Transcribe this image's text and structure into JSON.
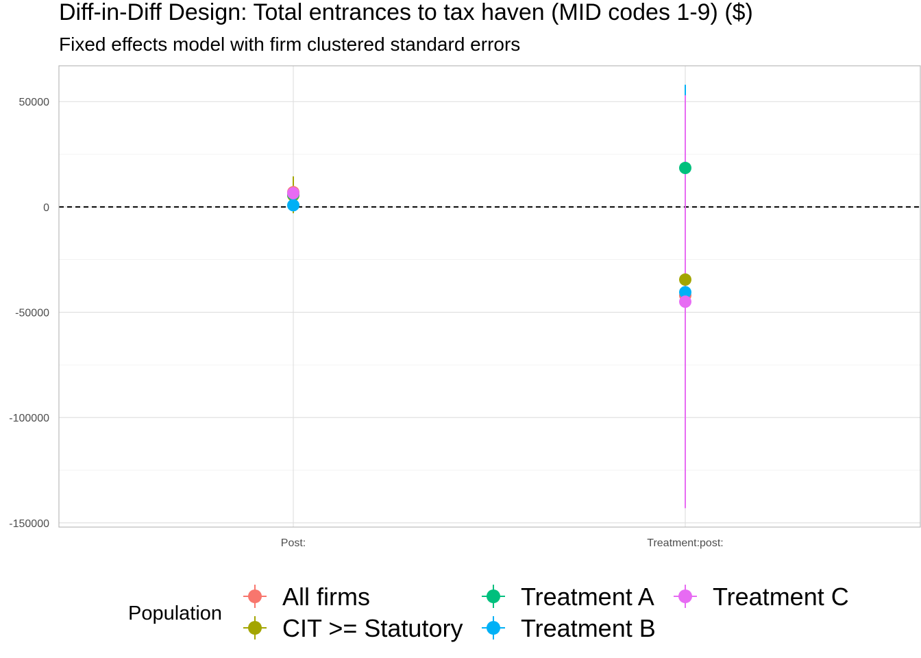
{
  "chart_data": {
    "type": "scatter",
    "title": "Diff-in-Diff Design: Total entrances to tax haven (MID codes 1-9)  ($)",
    "subtitle": "Fixed effects model with firm clustered standard errors",
    "xlabel": "",
    "ylabel": "",
    "categories": [
      "Post:",
      "Treatment:post:"
    ],
    "ylim": [
      -152000,
      67000
    ],
    "y_ticks": [
      50000,
      0,
      -50000,
      -100000,
      -150000
    ],
    "y_tick_labels": [
      "50000",
      "0",
      "-50000",
      "-100000",
      "-150000"
    ],
    "reference_line": {
      "y": 0,
      "style": "dashed"
    },
    "grid": true,
    "legend": {
      "title": "Population",
      "position": "bottom"
    },
    "series": [
      {
        "name": "All firms",
        "color": "#F8766D",
        "points": [
          {
            "x": "Post:",
            "y": 7000,
            "lo": 3000,
            "hi": 11000
          },
          {
            "x": "Treatment:post:",
            "y": -42000,
            "lo": -115000,
            "hi": 31000
          }
        ]
      },
      {
        "name": "CIT >= Statutory",
        "color": "#A3A500",
        "points": [
          {
            "x": "Post:",
            "y": 5500,
            "lo": -3000,
            "hi": 14500
          },
          {
            "x": "Treatment:post:",
            "y": -34500,
            "lo": -116000,
            "hi": 47000
          }
        ]
      },
      {
        "name": "Treatment A",
        "color": "#00BF7D",
        "points": [
          {
            "x": "Post:",
            "y": 6000,
            "lo": 2000,
            "hi": 10000
          },
          {
            "x": "Treatment:post:",
            "y": 18500,
            "lo": 16000,
            "hi": 21000
          }
        ]
      },
      {
        "name": "Treatment B",
        "color": "#00B0F6",
        "points": [
          {
            "x": "Post:",
            "y": 800,
            "lo": -1000,
            "hi": 2600
          },
          {
            "x": "Treatment:post:",
            "y": -40500,
            "lo": -138000,
            "hi": 58000
          }
        ]
      },
      {
        "name": "Treatment C",
        "color": "#E76BF3",
        "points": [
          {
            "x": "Post:",
            "y": 6500,
            "lo": 3000,
            "hi": 10000
          },
          {
            "x": "Treatment:post:",
            "y": -45000,
            "lo": -143000,
            "hi": 53000
          }
        ]
      }
    ]
  }
}
